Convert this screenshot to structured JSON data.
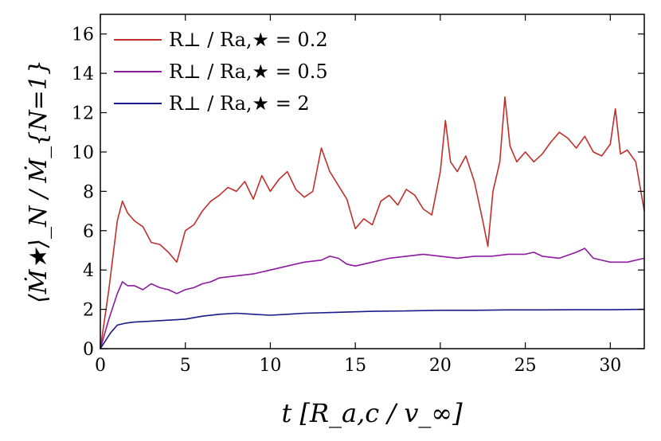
{
  "chart_data": {
    "type": "line",
    "title": "",
    "xlabel": "t [R_a,c / v_∞]",
    "ylabel": "⟨Ṁ★⟩_N / Ṁ_{N=1}",
    "xlim": [
      0,
      32
    ],
    "ylim": [
      0,
      17
    ],
    "xticks": [
      0,
      5,
      10,
      15,
      20,
      25,
      30
    ],
    "yticks": [
      0,
      2,
      4,
      6,
      8,
      10,
      12,
      14,
      16
    ],
    "grid": false,
    "legend_position": "top-left",
    "series": [
      {
        "name": "R⊥ / Ra,★ = 0.2",
        "color": "#c0302b",
        "x": [
          0,
          0.5,
          1.0,
          1.3,
          1.6,
          2.0,
          2.5,
          3.0,
          3.5,
          4.0,
          4.5,
          5.0,
          5.5,
          6.0,
          6.5,
          7.0,
          7.5,
          8.0,
          8.5,
          9.0,
          9.5,
          10.0,
          10.5,
          11.0,
          11.5,
          12.0,
          12.5,
          13.0,
          13.5,
          14.0,
          14.5,
          15.0,
          15.5,
          16.0,
          16.5,
          17.0,
          17.5,
          18.0,
          18.5,
          19.0,
          19.5,
          20.0,
          20.3,
          20.6,
          21.0,
          21.5,
          22.0,
          22.5,
          22.8,
          23.1,
          23.5,
          23.8,
          24.1,
          24.5,
          25.0,
          25.5,
          26.0,
          26.5,
          27.0,
          27.5,
          28.0,
          28.5,
          29.0,
          29.5,
          30.0,
          30.3,
          30.6,
          31.0,
          31.5,
          32.0
        ],
        "values": [
          0,
          3.0,
          6.5,
          7.5,
          6.9,
          6.5,
          6.2,
          5.4,
          5.3,
          4.9,
          4.4,
          6.0,
          6.3,
          7.0,
          7.5,
          7.8,
          8.2,
          8.0,
          8.5,
          7.6,
          8.8,
          8.0,
          8.6,
          9.0,
          8.1,
          7.7,
          8.0,
          10.2,
          9.0,
          8.3,
          7.6,
          6.1,
          6.6,
          6.3,
          7.5,
          7.8,
          7.3,
          8.1,
          7.8,
          7.1,
          6.8,
          9.0,
          11.6,
          9.5,
          9.0,
          9.8,
          8.5,
          6.5,
          5.2,
          8.0,
          9.5,
          12.8,
          10.3,
          9.5,
          10.0,
          9.5,
          9.9,
          10.5,
          11.0,
          10.7,
          10.2,
          10.8,
          10.0,
          9.8,
          10.4,
          12.2,
          9.9,
          10.1,
          9.5,
          7.0
        ]
      },
      {
        "name": "R⊥ / Ra,★ = 0.5",
        "color": "#8b1a9e",
        "x": [
          0,
          0.5,
          1.0,
          1.3,
          1.6,
          2.0,
          2.5,
          3.0,
          3.5,
          4.0,
          4.5,
          5.0,
          5.5,
          6.0,
          6.5,
          7.0,
          8.0,
          9.0,
          10.0,
          11.0,
          12.0,
          13.0,
          13.5,
          14.0,
          14.5,
          15.0,
          16.0,
          17.0,
          18.0,
          19.0,
          20.0,
          21.0,
          22.0,
          23.0,
          24.0,
          25.0,
          25.5,
          26.0,
          27.0,
          28.0,
          28.5,
          29.0,
          30.0,
          31.0,
          32.0
        ],
        "values": [
          0,
          1.5,
          2.8,
          3.4,
          3.2,
          3.2,
          3.0,
          3.3,
          3.1,
          3.0,
          2.8,
          3.0,
          3.1,
          3.3,
          3.4,
          3.6,
          3.7,
          3.8,
          4.0,
          4.2,
          4.4,
          4.5,
          4.7,
          4.6,
          4.3,
          4.2,
          4.4,
          4.6,
          4.7,
          4.8,
          4.7,
          4.6,
          4.7,
          4.7,
          4.8,
          4.8,
          4.9,
          4.7,
          4.6,
          4.9,
          5.1,
          4.6,
          4.4,
          4.4,
          4.6
        ]
      },
      {
        "name": "R⊥ / Ra,★ = 2",
        "color": "#1a1a8a",
        "x": [
          0,
          0.3,
          0.6,
          1.0,
          1.5,
          2.0,
          3.0,
          4.0,
          5.0,
          6.0,
          7.0,
          8.0,
          9.0,
          10.0,
          11.0,
          12.0,
          14.0,
          16.0,
          18.0,
          20.0,
          22.0,
          24.0,
          26.0,
          28.0,
          30.0,
          32.0
        ],
        "values": [
          0,
          0.4,
          0.8,
          1.2,
          1.3,
          1.35,
          1.4,
          1.45,
          1.5,
          1.65,
          1.75,
          1.8,
          1.75,
          1.7,
          1.75,
          1.8,
          1.85,
          1.9,
          1.92,
          1.95,
          1.95,
          1.97,
          1.97,
          1.98,
          1.98,
          2.0
        ]
      }
    ]
  }
}
